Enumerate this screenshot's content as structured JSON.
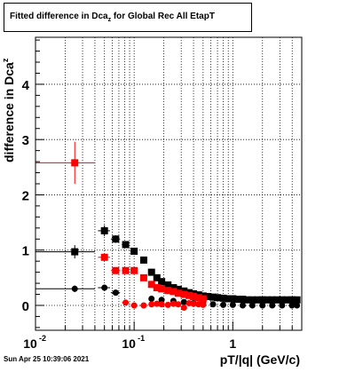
{
  "title": {
    "main": "Fitted difference in Dca",
    "sub": "z",
    "rest": " for Global Rec All EtapT"
  },
  "timestamp": "Sun Apr 25 10:39:06 2021",
  "axes": {
    "ylabel_main": "difference in Dca",
    "ylabel_sub": "z",
    "xlabel": "pT/|q| (GeV/c)"
  },
  "chart_data": {
    "type": "scatter",
    "title": "Fitted difference in Dca_z for Global Rec All EtapT",
    "xlabel": "pT/|q| (GeV/c)",
    "ylabel": "difference in Dca_z",
    "x_scale": "log",
    "xlim": [
      0.01,
      5.0
    ],
    "ylim": [
      -0.45,
      4.85
    ],
    "grid": true,
    "x_ticks": [
      {
        "value": 0.01,
        "label": "10",
        "exp": "-2"
      },
      {
        "value": 0.1,
        "label": "10",
        "exp": "-1"
      },
      {
        "value": 1,
        "label": "1",
        "exp": ""
      }
    ],
    "y_ticks": [
      0,
      1,
      2,
      3,
      4
    ],
    "series": [
      {
        "marker": "square",
        "color": "#000000",
        "points": [
          {
            "x": 0.025,
            "y": 0.97,
            "xerr": 0.015,
            "yerr": 0.12
          },
          {
            "x": 0.05,
            "y": 1.35,
            "xerr": 0.007,
            "yerr": 0.1
          },
          {
            "x": 0.065,
            "y": 1.2,
            "xerr": 0.007,
            "yerr": 0.07
          },
          {
            "x": 0.082,
            "y": 1.1,
            "xerr": 0.007,
            "yerr": 0.05
          },
          {
            "x": 0.1,
            "y": 0.98,
            "xerr": 0.008,
            "yerr": 0.04
          },
          {
            "x": 0.125,
            "y": 0.82,
            "xerr": 0.01,
            "yerr": 0.03
          },
          {
            "x": 0.15,
            "y": 0.6,
            "xerr": 0.01,
            "yerr": 0.03
          },
          {
            "x": 0.17,
            "y": 0.5,
            "xerr": 0.01,
            "yerr": 0.02
          },
          {
            "x": 0.19,
            "y": 0.43,
            "xerr": 0.01,
            "yerr": 0.02
          },
          {
            "x": 0.22,
            "y": 0.37,
            "xerr": 0.01,
            "yerr": 0.02
          },
          {
            "x": 0.25,
            "y": 0.32,
            "xerr": 0.01,
            "yerr": 0.02
          },
          {
            "x": 0.28,
            "y": 0.29,
            "xerr": 0.01,
            "yerr": 0.02
          },
          {
            "x": 0.32,
            "y": 0.26,
            "xerr": 0.01,
            "yerr": 0.02
          },
          {
            "x": 0.36,
            "y": 0.23,
            "xerr": 0.02,
            "yerr": 0.02
          },
          {
            "x": 0.4,
            "y": 0.21,
            "xerr": 0.02,
            "yerr": 0.02
          },
          {
            "x": 0.45,
            "y": 0.19,
            "xerr": 0.02,
            "yerr": 0.02
          },
          {
            "x": 0.5,
            "y": 0.17,
            "xerr": 0.02,
            "yerr": 0.02
          },
          {
            "x": 0.56,
            "y": 0.16,
            "xerr": 0.03,
            "yerr": 0.02
          },
          {
            "x": 0.63,
            "y": 0.15,
            "xerr": 0.03,
            "yerr": 0.02
          },
          {
            "x": 0.7,
            "y": 0.14,
            "xerr": 0.03,
            "yerr": 0.02
          },
          {
            "x": 0.8,
            "y": 0.13,
            "xerr": 0.04,
            "yerr": 0.02
          },
          {
            "x": 0.9,
            "y": 0.12,
            "xerr": 0.05,
            "yerr": 0.02
          },
          {
            "x": 1.0,
            "y": 0.12,
            "xerr": 0.05,
            "yerr": 0.02
          },
          {
            "x": 1.12,
            "y": 0.11,
            "xerr": 0.06,
            "yerr": 0.02
          },
          {
            "x": 1.26,
            "y": 0.11,
            "xerr": 0.07,
            "yerr": 0.02
          },
          {
            "x": 1.41,
            "y": 0.1,
            "xerr": 0.07,
            "yerr": 0.02
          },
          {
            "x": 1.58,
            "y": 0.1,
            "xerr": 0.08,
            "yerr": 0.02
          },
          {
            "x": 1.78,
            "y": 0.1,
            "xerr": 0.09,
            "yerr": 0.02
          },
          {
            "x": 2.0,
            "y": 0.1,
            "xerr": 0.1,
            "yerr": 0.02
          },
          {
            "x": 2.24,
            "y": 0.1,
            "xerr": 0.12,
            "yerr": 0.02
          },
          {
            "x": 2.51,
            "y": 0.1,
            "xerr": 0.13,
            "yerr": 0.02
          },
          {
            "x": 2.82,
            "y": 0.1,
            "xerr": 0.15,
            "yerr": 0.02
          },
          {
            "x": 3.16,
            "y": 0.1,
            "xerr": 0.16,
            "yerr": 0.02
          },
          {
            "x": 3.55,
            "y": 0.1,
            "xerr": 0.18,
            "yerr": 0.02
          },
          {
            "x": 3.98,
            "y": 0.1,
            "xerr": 0.2,
            "yerr": 0.02
          },
          {
            "x": 4.47,
            "y": 0.1,
            "xerr": 0.23,
            "yerr": 0.02
          }
        ]
      },
      {
        "marker": "circle",
        "color": "#000000",
        "points": [
          {
            "x": 0.025,
            "y": 0.3,
            "xerr": 0.015,
            "yerr": 0.06
          },
          {
            "x": 0.05,
            "y": 0.32,
            "xerr": 0.007,
            "yerr": 0.05
          },
          {
            "x": 0.065,
            "y": 0.23,
            "xerr": 0.007,
            "yerr": 0.03
          },
          {
            "x": 0.15,
            "y": 0.12,
            "xerr": 0.01,
            "yerr": 0.02
          },
          {
            "x": 0.19,
            "y": 0.1,
            "xerr": 0.01,
            "yerr": 0.02
          },
          {
            "x": 0.25,
            "y": 0.08,
            "xerr": 0.01,
            "yerr": 0.02
          },
          {
            "x": 0.32,
            "y": 0.06,
            "xerr": 0.01,
            "yerr": 0.02
          },
          {
            "x": 0.4,
            "y": 0.04,
            "xerr": 0.02,
            "yerr": 0.02
          },
          {
            "x": 0.5,
            "y": 0.03,
            "xerr": 0.02,
            "yerr": 0.02
          },
          {
            "x": 0.63,
            "y": 0.02,
            "xerr": 0.03,
            "yerr": 0.02
          },
          {
            "x": 0.8,
            "y": 0.01,
            "xerr": 0.04,
            "yerr": 0.02
          },
          {
            "x": 1.0,
            "y": 0.01,
            "xerr": 0.05,
            "yerr": 0.02
          },
          {
            "x": 1.26,
            "y": 0.0,
            "xerr": 0.07,
            "yerr": 0.02
          },
          {
            "x": 1.58,
            "y": 0.0,
            "xerr": 0.08,
            "yerr": 0.02
          },
          {
            "x": 2.0,
            "y": 0.0,
            "xerr": 0.1,
            "yerr": 0.02
          },
          {
            "x": 2.51,
            "y": 0.0,
            "xerr": 0.13,
            "yerr": 0.02
          },
          {
            "x": 3.16,
            "y": 0.0,
            "xerr": 0.16,
            "yerr": 0.02
          },
          {
            "x": 3.98,
            "y": 0.0,
            "xerr": 0.2,
            "yerr": 0.02
          },
          {
            "x": 4.47,
            "y": 0.0,
            "xerr": 0.23,
            "yerr": 0.02
          }
        ]
      },
      {
        "marker": "square",
        "color": "#ff0000",
        "points": [
          {
            "x": 0.025,
            "y": 2.58,
            "xerr": 0.015,
            "yerr": 0.38
          },
          {
            "x": 0.05,
            "y": 0.87,
            "xerr": 0.007,
            "yerr": 0.07
          },
          {
            "x": 0.065,
            "y": 0.63,
            "xerr": 0.007,
            "yerr": 0.05
          },
          {
            "x": 0.082,
            "y": 0.63,
            "xerr": 0.007,
            "yerr": 0.04
          },
          {
            "x": 0.1,
            "y": 0.63,
            "xerr": 0.008,
            "yerr": 0.04
          },
          {
            "x": 0.125,
            "y": 0.5,
            "xerr": 0.01,
            "yerr": 0.03
          },
          {
            "x": 0.15,
            "y": 0.38,
            "xerr": 0.01,
            "yerr": 0.03
          },
          {
            "x": 0.17,
            "y": 0.32,
            "xerr": 0.01,
            "yerr": 0.03
          },
          {
            "x": 0.19,
            "y": 0.3,
            "xerr": 0.01,
            "yerr": 0.03
          },
          {
            "x": 0.22,
            "y": 0.27,
            "xerr": 0.01,
            "yerr": 0.03
          },
          {
            "x": 0.25,
            "y": 0.25,
            "xerr": 0.01,
            "yerr": 0.03
          },
          {
            "x": 0.28,
            "y": 0.22,
            "xerr": 0.01,
            "yerr": 0.03
          },
          {
            "x": 0.32,
            "y": 0.2,
            "xerr": 0.01,
            "yerr": 0.03
          },
          {
            "x": 0.36,
            "y": 0.18,
            "xerr": 0.02,
            "yerr": 0.03
          },
          {
            "x": 0.4,
            "y": 0.16,
            "xerr": 0.02,
            "yerr": 0.03
          },
          {
            "x": 0.45,
            "y": 0.14,
            "xerr": 0.02,
            "yerr": 0.03
          },
          {
            "x": 0.5,
            "y": 0.12,
            "xerr": 0.02,
            "yerr": 0.03
          }
        ]
      },
      {
        "marker": "circle",
        "color": "#ff0000",
        "points": [
          {
            "x": 0.082,
            "y": 0.05,
            "xerr": 0.007,
            "yerr": 0.03
          },
          {
            "x": 0.1,
            "y": 0.0,
            "xerr": 0.008,
            "yerr": 0.03
          },
          {
            "x": 0.125,
            "y": 0.0,
            "xerr": 0.01,
            "yerr": 0.03
          },
          {
            "x": 0.15,
            "y": 0.02,
            "xerr": 0.01,
            "yerr": 0.03
          },
          {
            "x": 0.17,
            "y": 0.03,
            "xerr": 0.01,
            "yerr": 0.03
          },
          {
            "x": 0.19,
            "y": 0.02,
            "xerr": 0.01,
            "yerr": 0.03
          },
          {
            "x": 0.22,
            "y": 0.01,
            "xerr": 0.01,
            "yerr": 0.03
          },
          {
            "x": 0.25,
            "y": 0.03,
            "xerr": 0.01,
            "yerr": 0.03
          },
          {
            "x": 0.28,
            "y": 0.02,
            "xerr": 0.01,
            "yerr": 0.03
          },
          {
            "x": 0.32,
            "y": -0.04,
            "xerr": 0.01,
            "yerr": 0.03
          },
          {
            "x": 0.36,
            "y": 0.04,
            "xerr": 0.02,
            "yerr": 0.03
          },
          {
            "x": 0.4,
            "y": 0.03,
            "xerr": 0.02,
            "yerr": 0.03
          },
          {
            "x": 0.45,
            "y": 0.02,
            "xerr": 0.02,
            "yerr": 0.03
          },
          {
            "x": 0.5,
            "y": 0.01,
            "xerr": 0.02,
            "yerr": 0.03
          }
        ]
      }
    ]
  }
}
